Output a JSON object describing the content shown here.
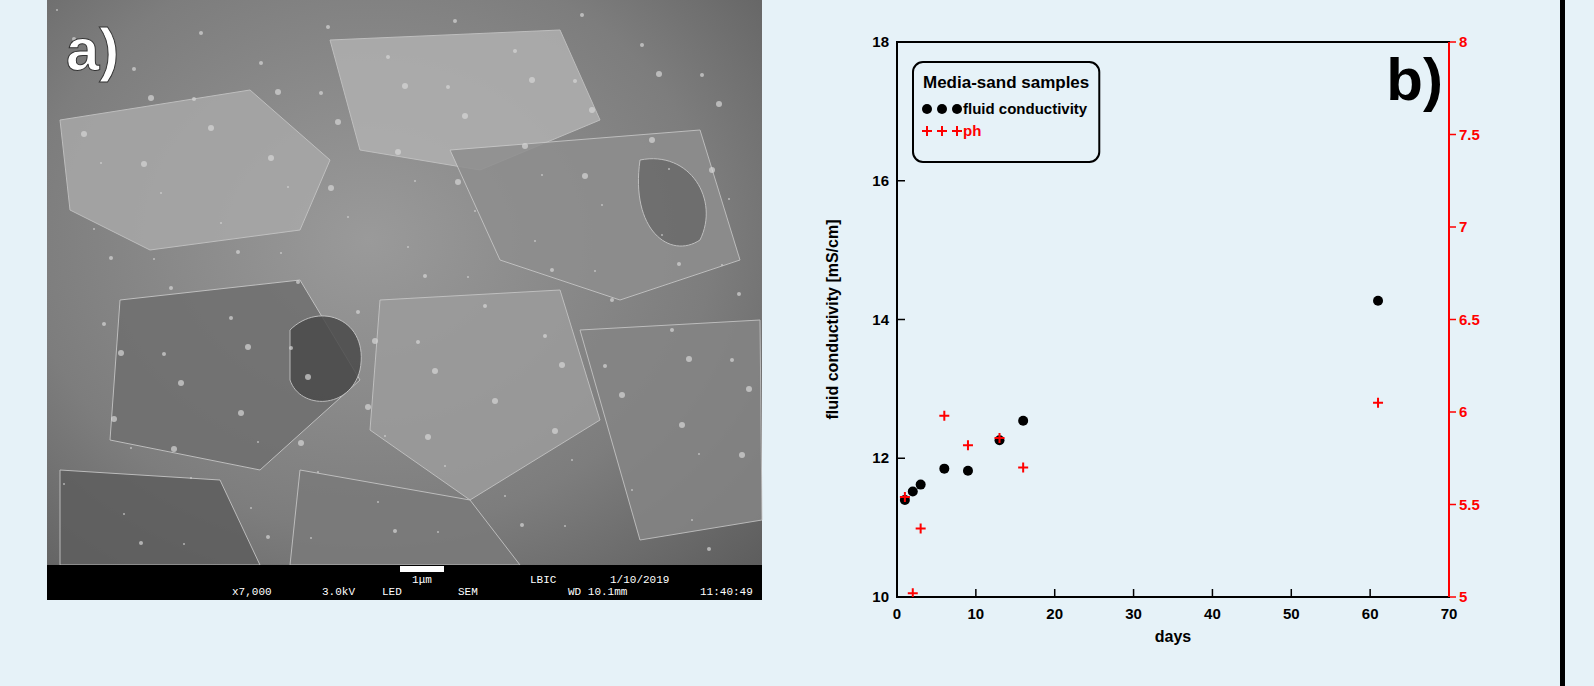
{
  "chart_data": {
    "type": "scatter",
    "panel_label": "b)",
    "legend_title": "Media-sand samples",
    "legend": "upper left",
    "xlabel": "days",
    "ylabel": "fluid conductivity [mS/cm]",
    "xlim": [
      0,
      70
    ],
    "xticks": [
      0,
      10,
      20,
      30,
      40,
      50,
      60,
      70
    ],
    "ylim": [
      10,
      18
    ],
    "yticks": [
      10,
      12,
      14,
      16,
      18
    ],
    "y2lim": [
      5,
      8
    ],
    "y2ticks": [
      5,
      5.5,
      6,
      6.5,
      7,
      7.5,
      8
    ],
    "series": [
      {
        "name": "fluid conductivity",
        "color": "#000000",
        "marker": "circle",
        "x": [
          1,
          2,
          3,
          6,
          9,
          13,
          16,
          61
        ],
        "values": [
          11.4,
          11.52,
          11.62,
          11.85,
          11.82,
          12.26,
          12.54,
          14.27
        ]
      },
      {
        "name": "ph",
        "color": "#ff0000",
        "marker": "plus",
        "axis": "y2",
        "x": [
          1,
          2,
          3,
          6,
          9,
          13,
          16,
          61
        ],
        "values": [
          5.54,
          5.02,
          5.37,
          5.98,
          5.82,
          5.86,
          5.7,
          6.05
        ]
      }
    ]
  },
  "image_panel": {
    "label": "a)",
    "footer_top": [
      "1μm",
      "LBIC",
      "1/10/2019"
    ],
    "footer_bottom": [
      "x7,000",
      "3.0kV",
      "LED",
      "SEM",
      "WD 10.1mm",
      "11:40:49"
    ]
  }
}
